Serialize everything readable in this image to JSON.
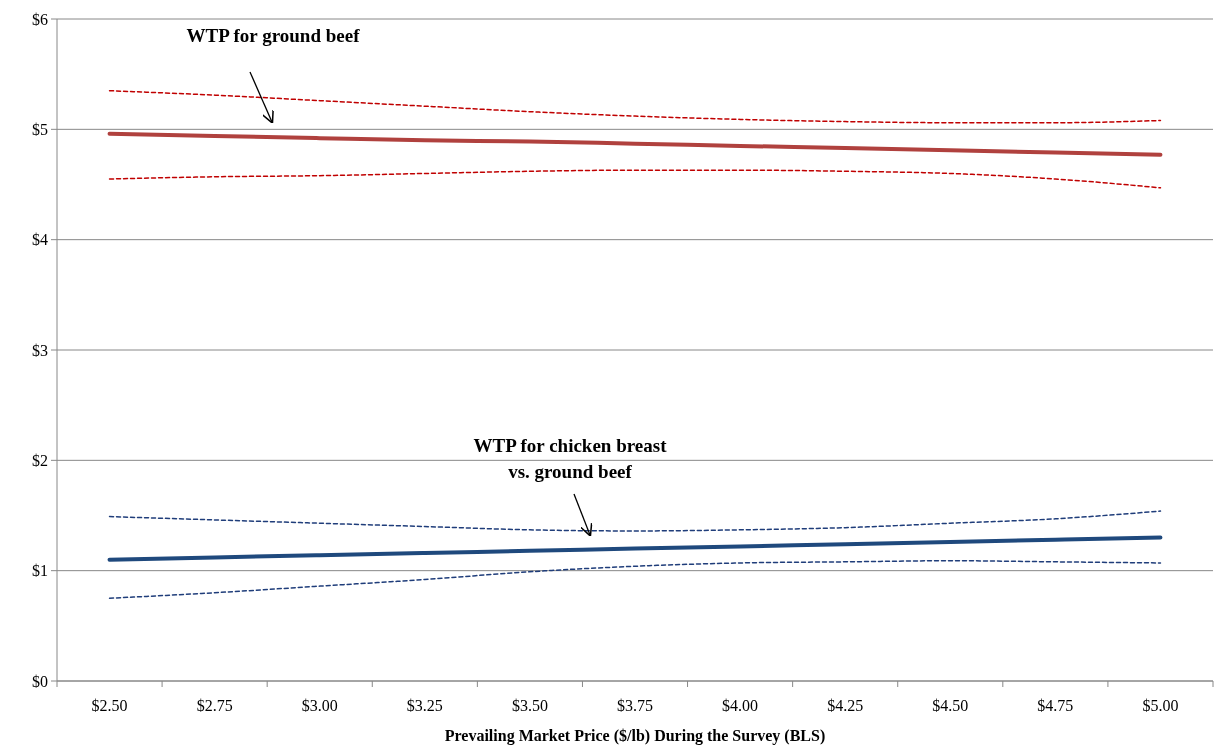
{
  "chart_data": {
    "type": "line",
    "xlabel": "Prevailing Market Price ($/lb) During the Survey (BLS)",
    "categories": [
      "$2.50",
      "$2.75",
      "$3.00",
      "$3.25",
      "$3.50",
      "$3.75",
      "$4.00",
      "$4.25",
      "$4.50",
      "$4.75",
      "$5.00"
    ],
    "series": [
      {
        "color": "#c00000",
        "line_style": "dashed",
        "values": [
          5.35,
          5.31,
          5.26,
          5.21,
          5.16,
          5.12,
          5.09,
          5.07,
          5.06,
          5.06,
          5.08
        ]
      },
      {
        "color": "#c00000",
        "line_style": "dashed",
        "values": [
          4.55,
          4.57,
          4.58,
          4.6,
          4.62,
          4.63,
          4.63,
          4.62,
          4.6,
          4.55,
          4.47
        ]
      },
      {
        "color": "#b0413e",
        "line_style": "solid",
        "values": [
          4.96,
          4.94,
          4.92,
          4.9,
          4.89,
          4.87,
          4.85,
          4.83,
          4.81,
          4.79,
          4.77
        ]
      },
      {
        "color": "#1f3d7a",
        "line_style": "dashed",
        "values": [
          1.49,
          1.46,
          1.43,
          1.4,
          1.37,
          1.36,
          1.37,
          1.39,
          1.43,
          1.47,
          1.54
        ]
      },
      {
        "color": "#1f3d7a",
        "line_style": "dashed",
        "values": [
          0.75,
          0.8,
          0.86,
          0.92,
          0.99,
          1.04,
          1.07,
          1.08,
          1.09,
          1.08,
          1.07
        ]
      },
      {
        "color": "#1f497d",
        "line_style": "solid",
        "values": [
          1.1,
          1.12,
          1.14,
          1.16,
          1.18,
          1.2,
          1.22,
          1.24,
          1.26,
          1.28,
          1.3
        ]
      }
    ],
    "ylim": [
      0,
      6
    ],
    "yticks": [
      {
        "value": 0,
        "label": "$0"
      },
      {
        "value": 1,
        "label": "$1"
      },
      {
        "value": 2,
        "label": "$2"
      },
      {
        "value": 3,
        "label": "$3"
      },
      {
        "value": 4,
        "label": "$4"
      },
      {
        "value": 5,
        "label": "$5"
      },
      {
        "value": 6,
        "label": "$6"
      }
    ],
    "grid": "y",
    "annotations": [
      "WTP for ground beef",
      "WTP for chicken breast\nvs. ground beef"
    ]
  }
}
